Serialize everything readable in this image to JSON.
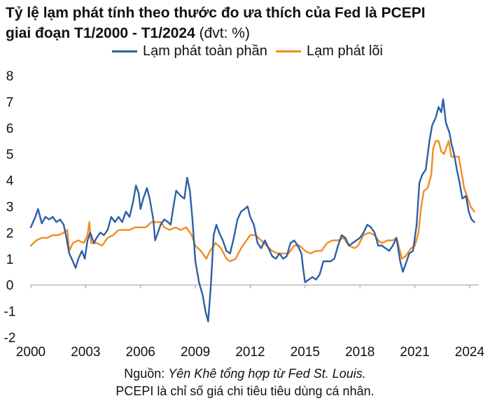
{
  "title": {
    "line1": "Tỷ lệ lạm phát tính theo thước đo ưa thích của Fed là PCEPI",
    "line2": "giai đoạn T1/2000 - T1/2024",
    "unit": " (đvt: %)"
  },
  "legend": {
    "headline": "Lạm phát toàn phần",
    "core": "Lạm phát lõi"
  },
  "source": {
    "prefix": "Nguồn: ",
    "text": "Yên Khê tổng hợp từ Fed St. Louis.",
    "note": "PCEPI là chỉ số giá chi tiêu tiêu dùng cá nhân."
  },
  "chart_data": {
    "type": "line",
    "title": "Tỷ lệ lạm phát tính theo thước đo ưa thích của Fed là PCEPI giai đoạn T1/2000 - T1/2024 (đvt: %)",
    "xlabel": "",
    "ylabel": "",
    "xlim": [
      2000,
      2024.5
    ],
    "ylim": [
      -2,
      8
    ],
    "x_ticks": [
      2000,
      2003,
      2006,
      2009,
      2012,
      2015,
      2018,
      2021,
      2024
    ],
    "x_tick_labels": [
      "2000",
      "2003",
      "2006",
      "2009",
      "2012",
      "2015",
      "2018",
      "2021",
      "2024"
    ],
    "y_ticks": [
      -2,
      -1,
      0,
      1,
      2,
      3,
      4,
      5,
      6,
      7,
      8
    ],
    "y_tick_labels": [
      "-2",
      "-1",
      "0",
      "1",
      "2",
      "3",
      "4",
      "5",
      "6",
      "7",
      "8"
    ],
    "colors": {
      "headline": "#2e5fa6",
      "core": "#f28c1c"
    },
    "series": [
      {
        "name": "Lạm phát toàn phần",
        "key": "headline",
        "points": [
          [
            2000.0,
            2.2
          ],
          [
            2000.25,
            2.6
          ],
          [
            2000.4,
            2.9
          ],
          [
            2000.6,
            2.35
          ],
          [
            2000.8,
            2.6
          ],
          [
            2001.0,
            2.5
          ],
          [
            2001.2,
            2.6
          ],
          [
            2001.4,
            2.4
          ],
          [
            2001.6,
            2.5
          ],
          [
            2001.8,
            2.3
          ],
          [
            2001.95,
            1.8
          ],
          [
            2002.1,
            1.2
          ],
          [
            2002.3,
            0.9
          ],
          [
            2002.45,
            0.65
          ],
          [
            2002.6,
            1.0
          ],
          [
            2002.8,
            1.3
          ],
          [
            2002.95,
            1.0
          ],
          [
            2003.1,
            1.7
          ],
          [
            2003.25,
            2.0
          ],
          [
            2003.45,
            1.6
          ],
          [
            2003.6,
            1.8
          ],
          [
            2003.8,
            2.0
          ],
          [
            2004.0,
            1.9
          ],
          [
            2004.2,
            2.1
          ],
          [
            2004.4,
            2.6
          ],
          [
            2004.6,
            2.4
          ],
          [
            2004.8,
            2.6
          ],
          [
            2005.0,
            2.4
          ],
          [
            2005.2,
            2.8
          ],
          [
            2005.4,
            2.6
          ],
          [
            2005.6,
            3.2
          ],
          [
            2005.75,
            3.8
          ],
          [
            2005.9,
            3.5
          ],
          [
            2006.0,
            2.9
          ],
          [
            2006.15,
            3.3
          ],
          [
            2006.35,
            3.7
          ],
          [
            2006.5,
            3.3
          ],
          [
            2006.7,
            2.5
          ],
          [
            2006.8,
            1.7
          ],
          [
            2006.95,
            2.0
          ],
          [
            2007.1,
            2.3
          ],
          [
            2007.3,
            2.5
          ],
          [
            2007.5,
            2.4
          ],
          [
            2007.65,
            2.3
          ],
          [
            2007.8,
            3.0
          ],
          [
            2007.95,
            3.6
          ],
          [
            2008.2,
            3.4
          ],
          [
            2008.4,
            3.3
          ],
          [
            2008.55,
            4.1
          ],
          [
            2008.7,
            3.6
          ],
          [
            2008.85,
            2.4
          ],
          [
            2009.0,
            0.9
          ],
          [
            2009.2,
            0.1
          ],
          [
            2009.4,
            -0.4
          ],
          [
            2009.55,
            -1.0
          ],
          [
            2009.7,
            -1.4
          ],
          [
            2009.85,
            0.0
          ],
          [
            2010.0,
            1.9
          ],
          [
            2010.15,
            2.3
          ],
          [
            2010.3,
            2.0
          ],
          [
            2010.5,
            1.7
          ],
          [
            2010.7,
            1.3
          ],
          [
            2010.9,
            1.2
          ],
          [
            2011.1,
            1.8
          ],
          [
            2011.3,
            2.5
          ],
          [
            2011.5,
            2.8
          ],
          [
            2011.7,
            2.9
          ],
          [
            2011.85,
            3.0
          ],
          [
            2012.0,
            2.6
          ],
          [
            2012.2,
            2.3
          ],
          [
            2012.4,
            1.6
          ],
          [
            2012.6,
            1.4
          ],
          [
            2012.8,
            1.7
          ],
          [
            2013.0,
            1.4
          ],
          [
            2013.2,
            1.1
          ],
          [
            2013.4,
            1.0
          ],
          [
            2013.6,
            1.2
          ],
          [
            2013.8,
            1.0
          ],
          [
            2014.0,
            1.1
          ],
          [
            2014.2,
            1.6
          ],
          [
            2014.4,
            1.7
          ],
          [
            2014.6,
            1.5
          ],
          [
            2014.8,
            1.2
          ],
          [
            2014.9,
            0.6
          ],
          [
            2015.0,
            0.1
          ],
          [
            2015.2,
            0.2
          ],
          [
            2015.4,
            0.3
          ],
          [
            2015.6,
            0.2
          ],
          [
            2015.8,
            0.4
          ],
          [
            2016.0,
            0.9
          ],
          [
            2016.2,
            0.9
          ],
          [
            2016.4,
            0.9
          ],
          [
            2016.6,
            1.0
          ],
          [
            2016.8,
            1.5
          ],
          [
            2017.0,
            1.9
          ],
          [
            2017.2,
            1.8
          ],
          [
            2017.4,
            1.5
          ],
          [
            2017.6,
            1.6
          ],
          [
            2017.8,
            1.7
          ],
          [
            2018.0,
            1.8
          ],
          [
            2018.2,
            2.0
          ],
          [
            2018.4,
            2.3
          ],
          [
            2018.6,
            2.2
          ],
          [
            2018.8,
            2.0
          ],
          [
            2019.0,
            1.5
          ],
          [
            2019.2,
            1.5
          ],
          [
            2019.4,
            1.4
          ],
          [
            2019.6,
            1.3
          ],
          [
            2019.8,
            1.5
          ],
          [
            2020.0,
            1.8
          ],
          [
            2020.2,
            0.9
          ],
          [
            2020.35,
            0.5
          ],
          [
            2020.5,
            0.8
          ],
          [
            2020.7,
            1.2
          ],
          [
            2020.9,
            1.3
          ],
          [
            2021.1,
            2.3
          ],
          [
            2021.25,
            3.9
          ],
          [
            2021.4,
            4.2
          ],
          [
            2021.6,
            4.4
          ],
          [
            2021.8,
            5.5
          ],
          [
            2021.95,
            6.1
          ],
          [
            2022.15,
            6.4
          ],
          [
            2022.3,
            6.8
          ],
          [
            2022.45,
            6.6
          ],
          [
            2022.55,
            7.1
          ],
          [
            2022.7,
            6.2
          ],
          [
            2022.9,
            5.8
          ],
          [
            2023.0,
            5.4
          ],
          [
            2023.15,
            5.0
          ],
          [
            2023.3,
            4.4
          ],
          [
            2023.45,
            3.9
          ],
          [
            2023.6,
            3.3
          ],
          [
            2023.8,
            3.4
          ],
          [
            2023.95,
            2.8
          ],
          [
            2024.1,
            2.5
          ],
          [
            2024.25,
            2.4
          ]
        ]
      },
      {
        "name": "Lạm phát lõi",
        "key": "core",
        "points": [
          [
            2000.0,
            1.5
          ],
          [
            2000.3,
            1.7
          ],
          [
            2000.6,
            1.8
          ],
          [
            2000.9,
            1.8
          ],
          [
            2001.2,
            1.9
          ],
          [
            2001.5,
            1.9
          ],
          [
            2001.8,
            2.0
          ],
          [
            2002.0,
            2.1
          ],
          [
            2002.1,
            1.3
          ],
          [
            2002.3,
            1.6
          ],
          [
            2002.6,
            1.7
          ],
          [
            2002.9,
            1.6
          ],
          [
            2003.1,
            1.9
          ],
          [
            2003.2,
            2.4
          ],
          [
            2003.3,
            1.6
          ],
          [
            2003.6,
            1.6
          ],
          [
            2003.9,
            1.5
          ],
          [
            2004.2,
            1.8
          ],
          [
            2004.5,
            1.9
          ],
          [
            2004.8,
            2.1
          ],
          [
            2005.1,
            2.1
          ],
          [
            2005.4,
            2.1
          ],
          [
            2005.7,
            2.2
          ],
          [
            2006.0,
            2.2
          ],
          [
            2006.3,
            2.2
          ],
          [
            2006.6,
            2.4
          ],
          [
            2006.9,
            2.4
          ],
          [
            2007.1,
            2.4
          ],
          [
            2007.3,
            2.2
          ],
          [
            2007.6,
            2.1
          ],
          [
            2007.9,
            2.2
          ],
          [
            2008.2,
            2.1
          ],
          [
            2008.5,
            2.2
          ],
          [
            2008.8,
            1.9
          ],
          [
            2009.0,
            1.5
          ],
          [
            2009.3,
            1.3
          ],
          [
            2009.6,
            1.0
          ],
          [
            2009.8,
            1.3
          ],
          [
            2010.1,
            1.6
          ],
          [
            2010.4,
            1.4
          ],
          [
            2010.7,
            1.0
          ],
          [
            2010.9,
            0.9
          ],
          [
            2011.2,
            1.0
          ],
          [
            2011.5,
            1.4
          ],
          [
            2011.8,
            1.7
          ],
          [
            2012.0,
            1.9
          ],
          [
            2012.3,
            1.9
          ],
          [
            2012.6,
            1.7
          ],
          [
            2012.9,
            1.5
          ],
          [
            2013.2,
            1.3
          ],
          [
            2013.5,
            1.2
          ],
          [
            2013.8,
            1.2
          ],
          [
            2014.1,
            1.2
          ],
          [
            2014.4,
            1.5
          ],
          [
            2014.7,
            1.5
          ],
          [
            2015.0,
            1.3
          ],
          [
            2015.3,
            1.2
          ],
          [
            2015.6,
            1.3
          ],
          [
            2015.9,
            1.3
          ],
          [
            2016.2,
            1.6
          ],
          [
            2016.5,
            1.7
          ],
          [
            2016.8,
            1.7
          ],
          [
            2017.1,
            1.8
          ],
          [
            2017.4,
            1.5
          ],
          [
            2017.7,
            1.4
          ],
          [
            2017.9,
            1.5
          ],
          [
            2018.2,
            1.9
          ],
          [
            2018.5,
            2.0
          ],
          [
            2018.8,
            1.9
          ],
          [
            2019.0,
            1.7
          ],
          [
            2019.2,
            1.6
          ],
          [
            2019.5,
            1.7
          ],
          [
            2019.8,
            1.7
          ],
          [
            2020.0,
            1.8
          ],
          [
            2020.3,
            1.0
          ],
          [
            2020.5,
            1.1
          ],
          [
            2020.8,
            1.4
          ],
          [
            2021.0,
            1.5
          ],
          [
            2021.2,
            2.0
          ],
          [
            2021.35,
            3.0
          ],
          [
            2021.5,
            3.6
          ],
          [
            2021.7,
            3.7
          ],
          [
            2021.9,
            4.2
          ],
          [
            2022.0,
            5.2
          ],
          [
            2022.15,
            5.5
          ],
          [
            2022.3,
            5.5
          ],
          [
            2022.45,
            5.1
          ],
          [
            2022.6,
            5.0
          ],
          [
            2022.75,
            5.3
          ],
          [
            2022.85,
            5.5
          ],
          [
            2023.0,
            4.9
          ],
          [
            2023.2,
            4.9
          ],
          [
            2023.4,
            4.9
          ],
          [
            2023.55,
            4.3
          ],
          [
            2023.7,
            3.7
          ],
          [
            2023.9,
            3.3
          ],
          [
            2024.05,
            3.0
          ],
          [
            2024.25,
            2.8
          ]
        ]
      }
    ]
  }
}
